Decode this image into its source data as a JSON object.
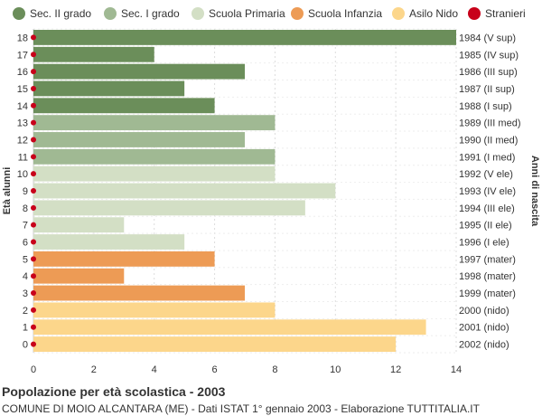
{
  "chart_data": {
    "type": "bar",
    "orientation": "horizontal",
    "title": "Popolazione per età scolastica - 2003",
    "subtitle": "COMUNE DI MOIO ALCANTARA (ME) - Dati ISTAT 1° gennaio 2003 - Elaborazione TUTTITALIA.IT",
    "ylabel_left": "Età alunni",
    "ylabel_right": "Anni di nascita",
    "xlim": [
      0,
      14
    ],
    "x_ticks": [
      "0",
      "2",
      "4",
      "6",
      "8",
      "10",
      "12",
      "14"
    ],
    "grid": true,
    "legend_position": "top",
    "legend": [
      {
        "name": "Sec. II grado",
        "color": "#6b8e5a"
      },
      {
        "name": "Sec. I grado",
        "color": "#a0b993"
      },
      {
        "name": "Scuola Primaria",
        "color": "#d3dfc5"
      },
      {
        "name": "Scuola Infanzia",
        "color": "#ed9b55"
      },
      {
        "name": "Asilo Nido",
        "color": "#fcd68b"
      },
      {
        "name": "Stranieri",
        "color": "#c8001a"
      }
    ],
    "rows": [
      {
        "age": "18",
        "birth": "1984 (V sup)",
        "value": 14,
        "group": 0
      },
      {
        "age": "17",
        "birth": "1985 (IV sup)",
        "value": 4,
        "group": 0
      },
      {
        "age": "16",
        "birth": "1986 (III sup)",
        "value": 7,
        "group": 0
      },
      {
        "age": "15",
        "birth": "1987 (II sup)",
        "value": 5,
        "group": 0
      },
      {
        "age": "14",
        "birth": "1988 (I sup)",
        "value": 6,
        "group": 0
      },
      {
        "age": "13",
        "birth": "1989 (III med)",
        "value": 8,
        "group": 1
      },
      {
        "age": "12",
        "birth": "1990 (II med)",
        "value": 7,
        "group": 1
      },
      {
        "age": "11",
        "birth": "1991 (I med)",
        "value": 8,
        "group": 1
      },
      {
        "age": "10",
        "birth": "1992 (V ele)",
        "value": 8,
        "group": 2
      },
      {
        "age": "9",
        "birth": "1993 (IV ele)",
        "value": 10,
        "group": 2
      },
      {
        "age": "8",
        "birth": "1994 (III ele)",
        "value": 9,
        "group": 2
      },
      {
        "age": "7",
        "birth": "1995 (II ele)",
        "value": 3,
        "group": 2
      },
      {
        "age": "6",
        "birth": "1996 (I ele)",
        "value": 5,
        "group": 2
      },
      {
        "age": "5",
        "birth": "1997 (mater)",
        "value": 6,
        "group": 3
      },
      {
        "age": "4",
        "birth": "1998 (mater)",
        "value": 3,
        "group": 3
      },
      {
        "age": "3",
        "birth": "1999 (mater)",
        "value": 7,
        "group": 3
      },
      {
        "age": "2",
        "birth": "2000 (nido)",
        "value": 8,
        "group": 4
      },
      {
        "age": "1",
        "birth": "2001 (nido)",
        "value": 13,
        "group": 4
      },
      {
        "age": "0",
        "birth": "2002 (nido)",
        "value": 12,
        "group": 4
      }
    ],
    "stranieri": [
      0,
      0,
      0,
      0,
      0,
      0,
      0,
      0,
      0,
      0,
      0,
      0,
      0,
      0,
      0,
      0,
      0,
      0,
      0
    ]
  }
}
